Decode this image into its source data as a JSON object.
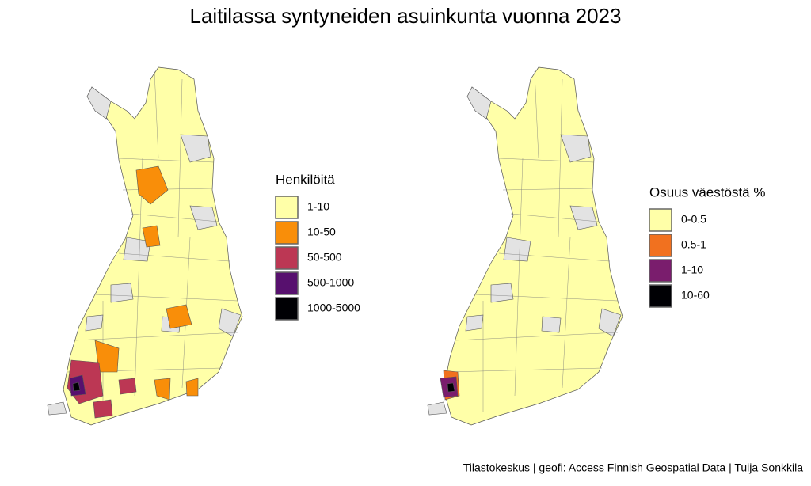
{
  "title": "Laitilassa syntyneiden asuinkunta vuonna 2023",
  "legends": [
    {
      "title": "Henkilöitä",
      "items": [
        {
          "label": "1-10",
          "color": "#ffffa8"
        },
        {
          "label": "10-50",
          "color": "#f98e09"
        },
        {
          "label": "50-500",
          "color": "#bc3754"
        },
        {
          "label": "500-1000",
          "color": "#57106e"
        },
        {
          "label": "1000-5000",
          "color": "#000004"
        }
      ]
    },
    {
      "title": "Osuus väestöstä %",
      "items": [
        {
          "label": "0-0.5",
          "color": "#ffffa8"
        },
        {
          "label": "0.5-1",
          "color": "#f1711f"
        },
        {
          "label": "1-10",
          "color": "#7a1d6d"
        },
        {
          "label": "10-60",
          "color": "#000004"
        }
      ]
    }
  ],
  "caption": "Tilastokeskus | geofi: Access Finnish Geospatial Data | Tuija Sonkkila"
}
